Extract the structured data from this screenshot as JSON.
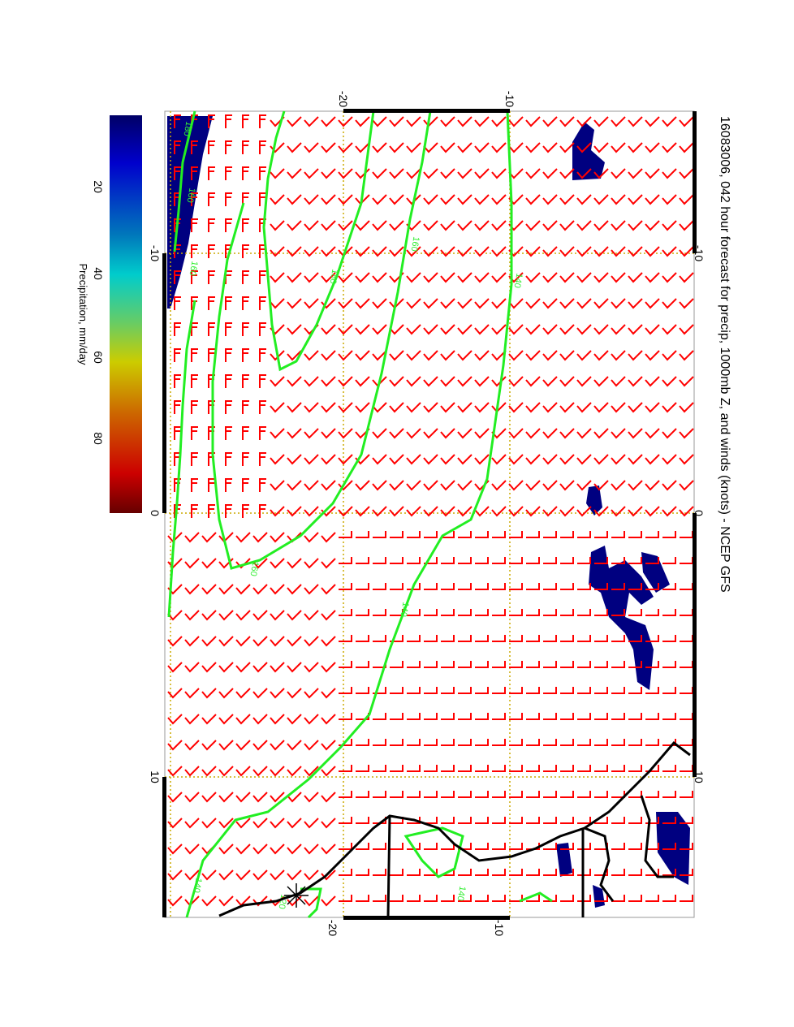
{
  "title": "16083006, 042 hour forecast for precip, 1000mb Z, and winds (knots) - NCEP GFS",
  "colorbar": {
    "label": "Precipitation, mm/day",
    "ticks": [
      "20",
      "40",
      "60",
      "80"
    ],
    "colors": [
      "#000066",
      "#0000cc",
      "#0088cc",
      "#00cccc",
      "#66cc66",
      "#cccc00",
      "#cc6600",
      "#cc0000",
      "#660000"
    ]
  },
  "axes": {
    "lat_labels_top": [
      "-20",
      "-10"
    ],
    "lat_labels_bottom": [
      "-20",
      "-10"
    ],
    "lon_labels_left": [
      "-10",
      "0",
      "10"
    ],
    "lon_labels_right": [
      "-10",
      "0",
      "10"
    ]
  },
  "contour_labels": [
    "180",
    "160",
    "160",
    "180",
    "160",
    "140",
    "140",
    "160",
    "140",
    "120",
    "140"
  ],
  "colors": {
    "wind": "#ff0000",
    "contour": "#22ee22",
    "precip": "#000080",
    "grid": "#ccaa00",
    "coast": "#000000"
  }
}
